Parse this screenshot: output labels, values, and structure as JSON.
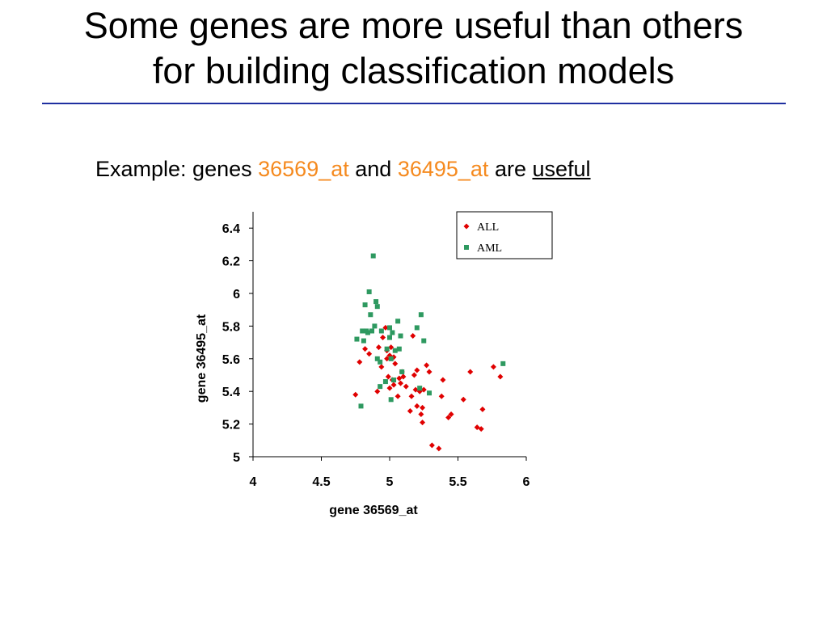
{
  "slide": {
    "title_line1": "Some genes are more useful than others",
    "title_line2": "for building classification models",
    "subtitle": {
      "prefix": "Example: genes ",
      "gene1": "36569_at",
      "and": " and ",
      "gene2": "36495_at",
      "are": " are ",
      "emph": "useful"
    },
    "colors": {
      "rule": "#1f2fa0",
      "highlight": "#f58a1f"
    }
  },
  "chart_data": {
    "type": "scatter",
    "xlabel": "gene 36569_at",
    "ylabel": "gene 36495_at",
    "xlim": [
      4,
      6
    ],
    "ylim": [
      5,
      6.5
    ],
    "xticks": [
      "4",
      "4.5",
      "5",
      "5.5",
      "6"
    ],
    "xtick_values": [
      4,
      4.5,
      5,
      5.5,
      6
    ],
    "yticks": [
      "5",
      "5.2",
      "5.4",
      "5.6",
      "5.8",
      "6",
      "6.2",
      "6.4"
    ],
    "ytick_values": [
      5,
      5.2,
      5.4,
      5.6,
      5.8,
      6,
      6.2,
      6.4
    ],
    "legend_position": "top-right",
    "series": [
      {
        "name": "ALL",
        "marker": "diamond",
        "color": "#e00000",
        "points": [
          [
            4.75,
            5.38
          ],
          [
            4.78,
            5.58
          ],
          [
            4.82,
            5.66
          ],
          [
            4.85,
            5.63
          ],
          [
            4.91,
            5.4
          ],
          [
            4.92,
            5.67
          ],
          [
            4.94,
            5.55
          ],
          [
            4.95,
            5.73
          ],
          [
            4.97,
            5.79
          ],
          [
            4.98,
            5.65
          ],
          [
            4.98,
            5.6
          ],
          [
            4.99,
            5.49
          ],
          [
            5.0,
            5.62
          ],
          [
            5.0,
            5.42
          ],
          [
            5.01,
            5.67
          ],
          [
            5.02,
            5.47
          ],
          [
            5.03,
            5.61
          ],
          [
            5.03,
            5.44
          ],
          [
            5.04,
            5.57
          ],
          [
            5.06,
            5.37
          ],
          [
            5.07,
            5.48
          ],
          [
            5.08,
            5.45
          ],
          [
            5.09,
            5.52
          ],
          [
            5.1,
            5.49
          ],
          [
            5.12,
            5.43
          ],
          [
            5.15,
            5.28
          ],
          [
            5.16,
            5.37
          ],
          [
            5.17,
            5.74
          ],
          [
            5.18,
            5.5
          ],
          [
            5.19,
            5.41
          ],
          [
            5.2,
            5.53
          ],
          [
            5.2,
            5.31
          ],
          [
            5.22,
            5.4
          ],
          [
            5.23,
            5.26
          ],
          [
            5.24,
            5.3
          ],
          [
            5.24,
            5.21
          ],
          [
            5.25,
            5.41
          ],
          [
            5.27,
            5.56
          ],
          [
            5.29,
            5.52
          ],
          [
            5.31,
            5.07
          ],
          [
            5.36,
            5.05
          ],
          [
            5.38,
            5.37
          ],
          [
            5.39,
            5.47
          ],
          [
            5.43,
            5.24
          ],
          [
            5.45,
            5.26
          ],
          [
            5.54,
            5.35
          ],
          [
            5.59,
            5.52
          ],
          [
            5.64,
            5.18
          ],
          [
            5.67,
            5.17
          ],
          [
            5.68,
            5.29
          ],
          [
            5.76,
            5.55
          ],
          [
            5.81,
            5.49
          ]
        ]
      },
      {
        "name": "AML",
        "marker": "square",
        "color": "#2e9960",
        "points": [
          [
            4.76,
            5.72
          ],
          [
            4.79,
            5.31
          ],
          [
            4.8,
            5.77
          ],
          [
            4.81,
            5.71
          ],
          [
            4.82,
            5.93
          ],
          [
            4.83,
            5.77
          ],
          [
            4.84,
            5.76
          ],
          [
            4.85,
            6.01
          ],
          [
            4.86,
            5.87
          ],
          [
            4.87,
            5.77
          ],
          [
            4.88,
            6.23
          ],
          [
            4.89,
            5.8
          ],
          [
            4.9,
            5.95
          ],
          [
            4.91,
            5.92
          ],
          [
            4.91,
            5.6
          ],
          [
            4.93,
            5.58
          ],
          [
            4.93,
            5.43
          ],
          [
            4.94,
            5.77
          ],
          [
            4.97,
            5.46
          ],
          [
            4.98,
            5.66
          ],
          [
            5.0,
            5.73
          ],
          [
            5.0,
            5.79
          ],
          [
            5.01,
            5.6
          ],
          [
            5.01,
            5.35
          ],
          [
            5.02,
            5.76
          ],
          [
            5.03,
            5.47
          ],
          [
            5.04,
            5.65
          ],
          [
            5.06,
            5.83
          ],
          [
            5.07,
            5.66
          ],
          [
            5.08,
            5.74
          ],
          [
            5.09,
            5.52
          ],
          [
            5.2,
            5.79
          ],
          [
            5.22,
            5.42
          ],
          [
            5.23,
            5.87
          ],
          [
            5.25,
            5.71
          ],
          [
            5.29,
            5.39
          ],
          [
            5.83,
            5.57
          ]
        ]
      }
    ]
  }
}
